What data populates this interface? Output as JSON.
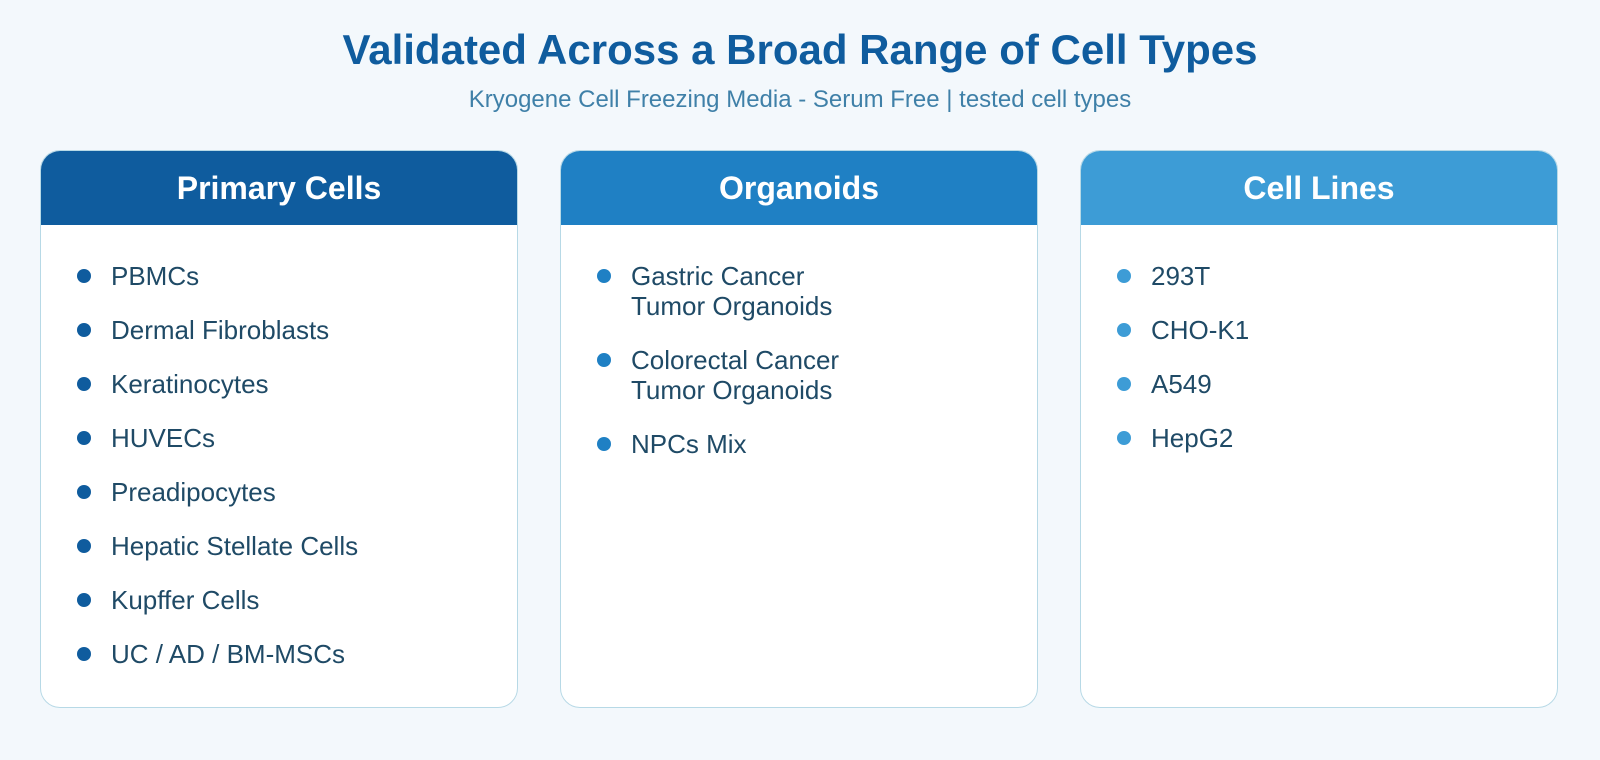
{
  "title": "Validated Across a Broad Range of Cell Types",
  "subtitle": "Kryogene Cell Freezing Media - Serum Free | tested cell types",
  "colors": {
    "primary": "#0f5c9e",
    "organoids": "#1f80c4",
    "cell_lines": "#3d9cd6",
    "text": "#1f4a66",
    "background": "#f3f8fc"
  },
  "cards": [
    {
      "header": "Primary Cells",
      "items": [
        "PBMCs",
        "Dermal Fibroblasts",
        "Keratinocytes",
        "HUVECs",
        "Preadipocytes",
        "Hepatic Stellate Cells",
        "Kupffer Cells",
        "UC / AD / BM-MSCs"
      ]
    },
    {
      "header": "Organoids",
      "items": [
        "Gastric Cancer\nTumor Organoids",
        "Colorectal Cancer\nTumor Organoids",
        "NPCs Mix"
      ]
    },
    {
      "header": "Cell Lines",
      "items": [
        "293T",
        "CHO-K1",
        "A549",
        "HepG2"
      ]
    }
  ]
}
